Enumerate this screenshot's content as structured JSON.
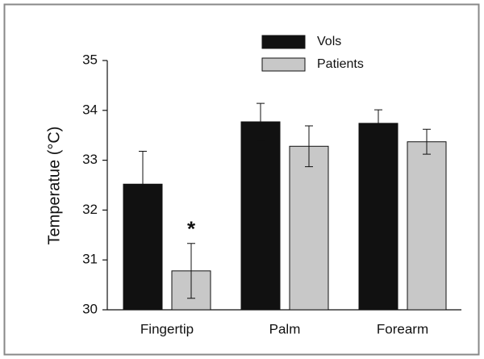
{
  "chart_data": {
    "type": "bar",
    "y_label": "Temperatue (°C)",
    "categories": [
      "Fingertip",
      "Palm",
      "Forearm"
    ],
    "series": [
      {
        "name": "Vols",
        "color": "#111111",
        "values": [
          32.52,
          33.77,
          33.74
        ],
        "errors": [
          0.66,
          0.37,
          0.27
        ]
      },
      {
        "name": "Patients",
        "color": "#c8c8c8",
        "values": [
          30.78,
          33.28,
          33.37
        ],
        "errors": [
          0.55,
          0.41,
          0.25
        ]
      }
    ],
    "ylim": [
      30,
      35
    ],
    "yticks": [
      30,
      31,
      32,
      33,
      34,
      35
    ],
    "annotations": [
      {
        "text": "*"
      }
    ],
    "legend": "top"
  }
}
